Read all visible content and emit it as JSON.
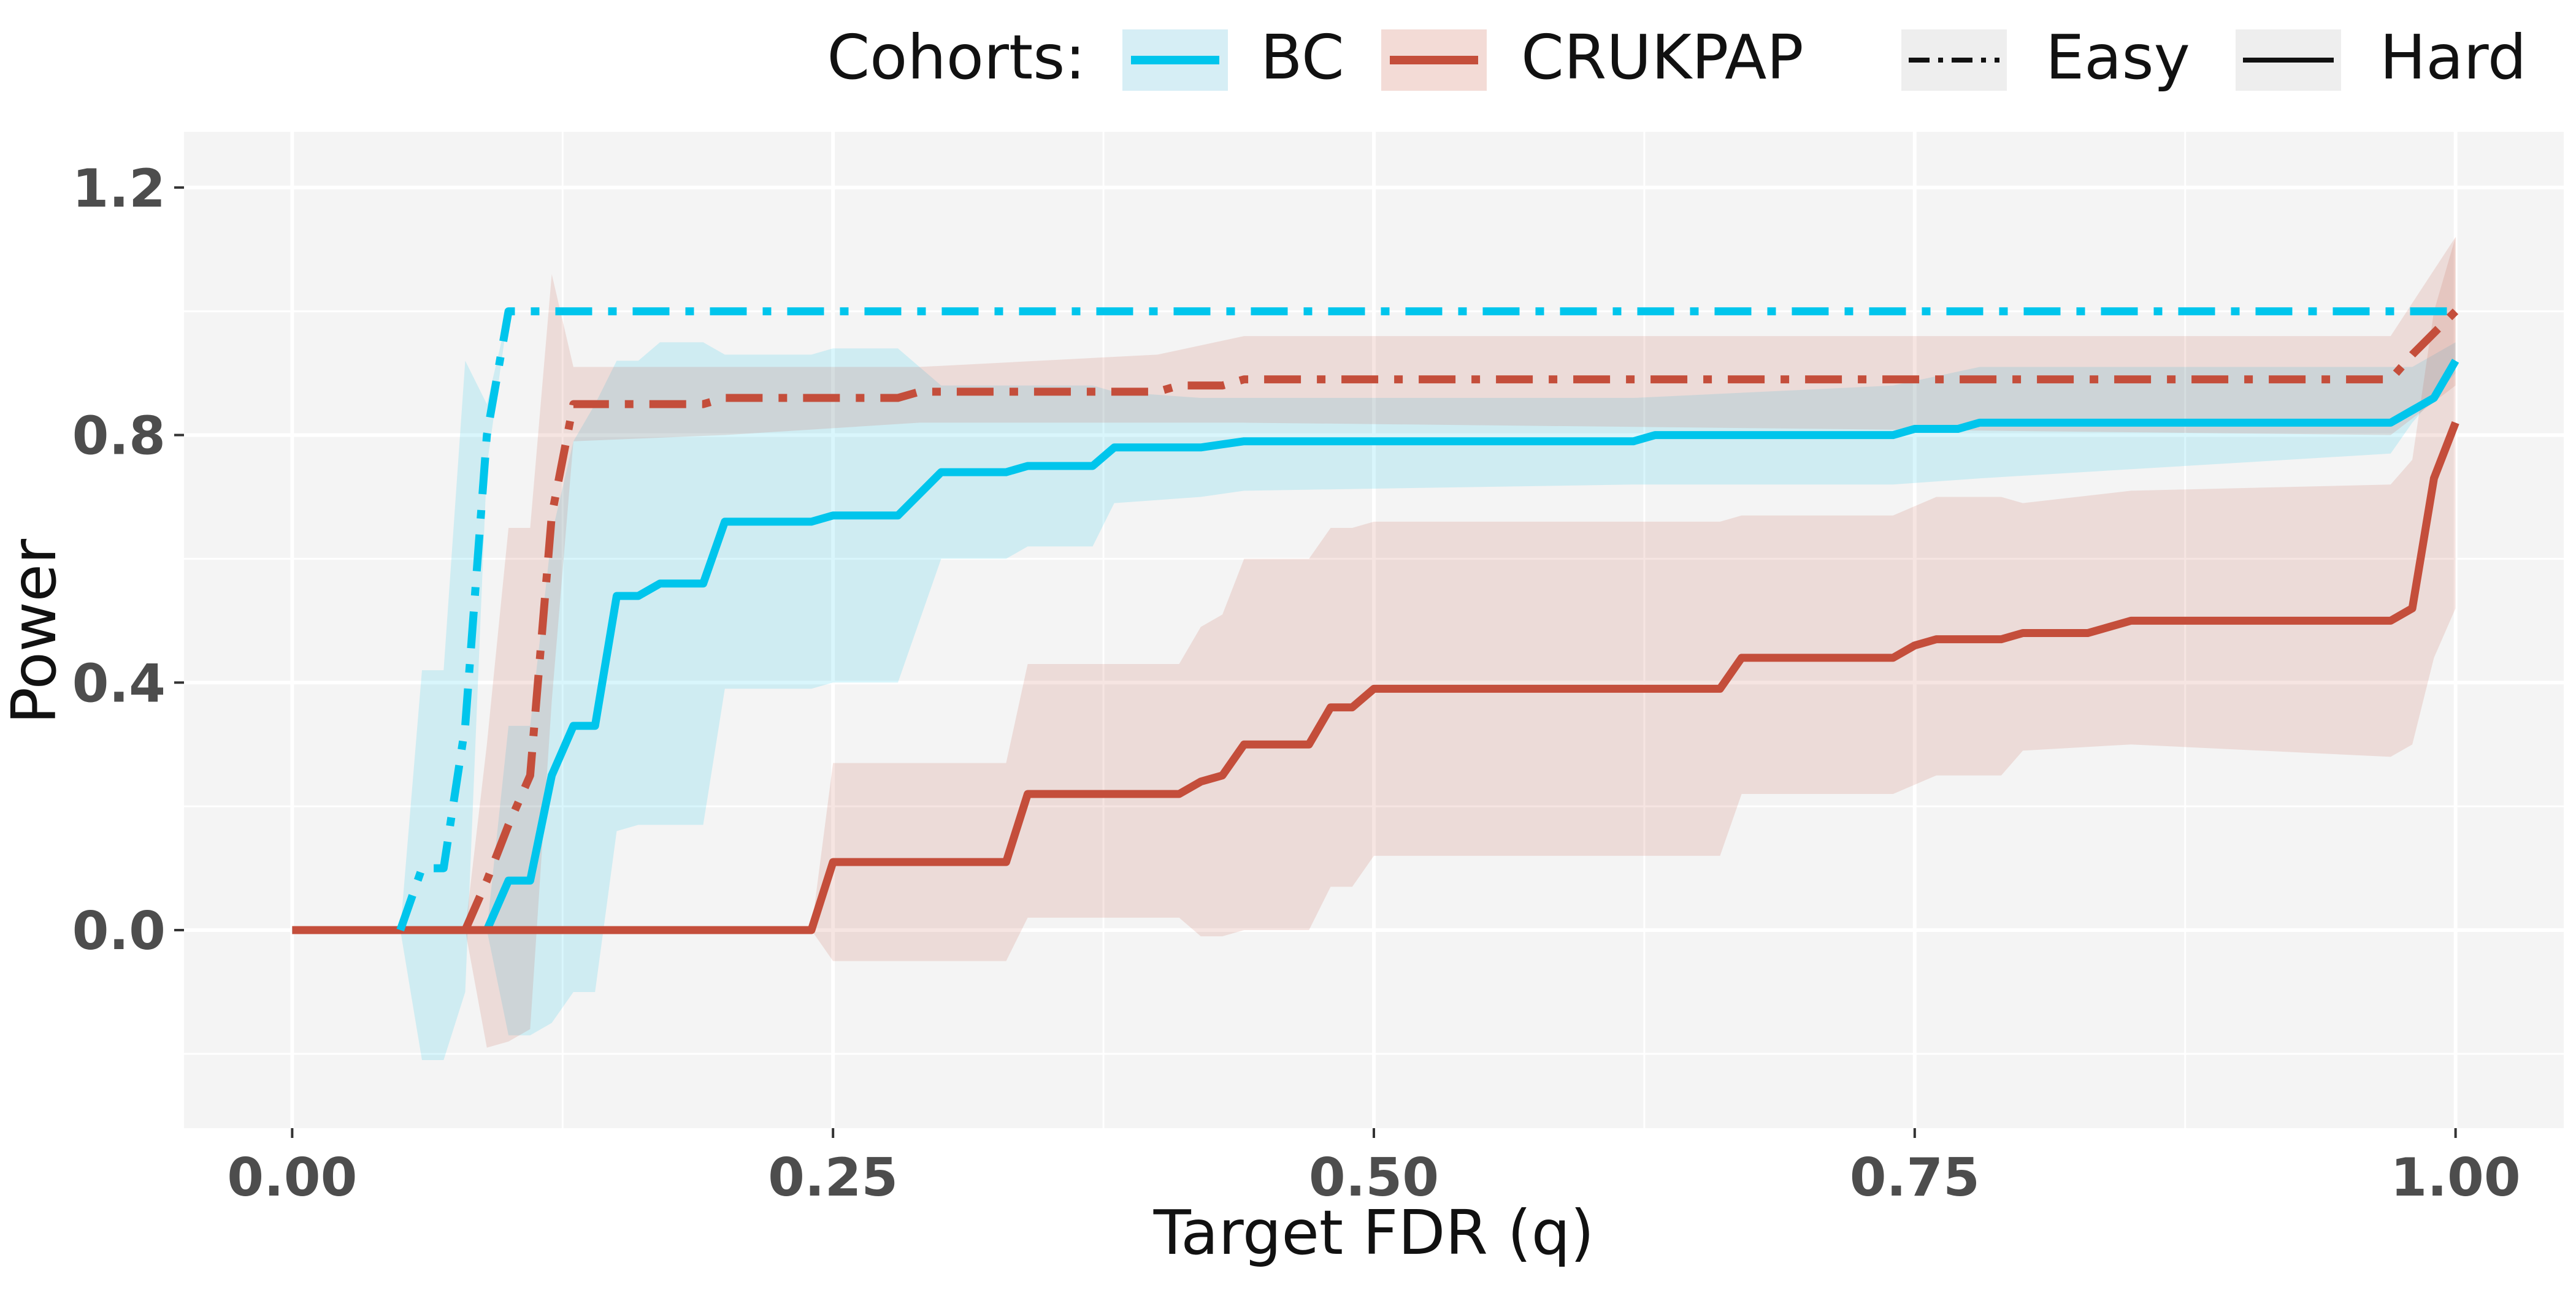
{
  "chart_data": {
    "type": "line",
    "xlabel": "Target FDR (q)",
    "ylabel": "Power",
    "xlim": [
      -0.05,
      1.05
    ],
    "ylim": [
      -0.32,
      1.29
    ],
    "x_ticks": [
      0.0,
      0.25,
      0.5,
      0.75,
      1.0
    ],
    "x_tick_labels": [
      "0.00",
      "0.25",
      "0.50",
      "0.75",
      "1.00"
    ],
    "y_ticks": [
      0.0,
      0.4,
      0.8,
      1.2
    ],
    "y_tick_labels": [
      "0.0",
      "0.4",
      "0.8",
      "1.2"
    ],
    "grid": true,
    "legend": {
      "position": "top",
      "cohorts_title": "Cohorts:",
      "cohorts": [
        {
          "label": "BC",
          "color": "#00C5EC"
        },
        {
          "label": "CRUKPAP",
          "color": "#C44E3B"
        }
      ],
      "difficulty": [
        {
          "label": "Easy",
          "linestyle": "dashdot"
        },
        {
          "label": "Hard",
          "linestyle": "solid"
        }
      ]
    },
    "series": [
      {
        "cohort": "BC",
        "difficulty": "Easy",
        "color": "#00C5EC",
        "linestyle": "dashdot",
        "x": [
          0.05,
          0.06,
          0.07,
          0.08,
          0.09,
          0.1,
          1.0
        ],
        "y": [
          0.0,
          0.1,
          0.1,
          0.33,
          0.8,
          1.0,
          1.0
        ],
        "band_x": [
          0.05,
          0.06,
          0.07,
          0.08,
          0.09,
          0.1,
          1.0
        ],
        "band_lo": [
          0.0,
          -0.21,
          -0.21,
          -0.1,
          0.75,
          1.0,
          1.0
        ],
        "band_hi": [
          0.0,
          0.42,
          0.42,
          0.92,
          0.85,
          1.0,
          1.0
        ]
      },
      {
        "cohort": "BC",
        "difficulty": "Hard",
        "color": "#00C5EC",
        "linestyle": "solid",
        "x": [
          0.0,
          0.09,
          0.1,
          0.11,
          0.12,
          0.13,
          0.14,
          0.15,
          0.16,
          0.17,
          0.19,
          0.2,
          0.24,
          0.25,
          0.28,
          0.3,
          0.33,
          0.34,
          0.37,
          0.38,
          0.42,
          0.43,
          0.44,
          0.62,
          0.63,
          0.74,
          0.75,
          0.77,
          0.78,
          0.97,
          0.98,
          0.99,
          1.0
        ],
        "y": [
          0.0,
          0.0,
          0.08,
          0.08,
          0.25,
          0.33,
          0.33,
          0.54,
          0.54,
          0.56,
          0.56,
          0.66,
          0.66,
          0.67,
          0.67,
          0.74,
          0.74,
          0.75,
          0.75,
          0.78,
          0.78,
          0.785,
          0.79,
          0.79,
          0.8,
          0.8,
          0.81,
          0.81,
          0.82,
          0.82,
          0.84,
          0.86,
          0.92
        ],
        "band_x": [
          0.09,
          0.1,
          0.11,
          0.12,
          0.13,
          0.14,
          0.15,
          0.16,
          0.17,
          0.19,
          0.2,
          0.24,
          0.25,
          0.28,
          0.3,
          0.33,
          0.34,
          0.37,
          0.38,
          0.42,
          0.44,
          0.62,
          0.74,
          0.78,
          0.97,
          0.98,
          1.0
        ],
        "band_lo": [
          0.0,
          -0.17,
          -0.17,
          -0.15,
          -0.1,
          -0.1,
          0.16,
          0.17,
          0.17,
          0.17,
          0.39,
          0.39,
          0.4,
          0.4,
          0.6,
          0.6,
          0.62,
          0.62,
          0.69,
          0.7,
          0.71,
          0.72,
          0.72,
          0.73,
          0.77,
          0.82,
          0.9
        ],
        "band_hi": [
          0.0,
          0.33,
          0.33,
          0.64,
          0.79,
          0.85,
          0.92,
          0.92,
          0.95,
          0.95,
          0.93,
          0.93,
          0.94,
          0.94,
          0.88,
          0.88,
          0.88,
          0.88,
          0.87,
          0.86,
          0.86,
          0.86,
          0.88,
          0.91,
          0.91,
          0.91,
          0.95
        ]
      },
      {
        "cohort": "CRUKPAP",
        "difficulty": "Easy",
        "color": "#C44E3B",
        "linestyle": "dashdot",
        "x": [
          0.08,
          0.09,
          0.1,
          0.11,
          0.12,
          0.13,
          0.19,
          0.2,
          0.28,
          0.29,
          0.4,
          0.41,
          0.43,
          0.44,
          0.97,
          0.98,
          1.0
        ],
        "y": [
          0.0,
          0.08,
          0.17,
          0.25,
          0.67,
          0.85,
          0.85,
          0.86,
          0.86,
          0.87,
          0.87,
          0.88,
          0.88,
          0.89,
          0.89,
          0.93,
          1.0
        ],
        "band_x": [
          0.08,
          0.09,
          0.1,
          0.11,
          0.12,
          0.13,
          0.2,
          0.29,
          0.4,
          0.44,
          0.97,
          1.0
        ],
        "band_lo": [
          0.0,
          -0.19,
          -0.18,
          -0.16,
          0.37,
          0.79,
          0.8,
          0.82,
          0.82,
          0.82,
          0.8,
          0.88
        ],
        "band_hi": [
          0.0,
          0.3,
          0.65,
          0.65,
          1.06,
          0.91,
          0.91,
          0.91,
          0.93,
          0.96,
          0.96,
          1.12
        ]
      },
      {
        "cohort": "CRUKPAP",
        "difficulty": "Hard",
        "color": "#C44E3B",
        "linestyle": "solid",
        "x": [
          0.0,
          0.24,
          0.25,
          0.33,
          0.34,
          0.41,
          0.42,
          0.43,
          0.44,
          0.47,
          0.48,
          0.49,
          0.5,
          0.66,
          0.67,
          0.74,
          0.75,
          0.76,
          0.79,
          0.8,
          0.83,
          0.85,
          0.97,
          0.98,
          0.99,
          1.0
        ],
        "y": [
          0.0,
          0.0,
          0.11,
          0.11,
          0.22,
          0.22,
          0.24,
          0.25,
          0.3,
          0.3,
          0.36,
          0.36,
          0.39,
          0.39,
          0.44,
          0.44,
          0.46,
          0.47,
          0.47,
          0.48,
          0.48,
          0.5,
          0.5,
          0.52,
          0.73,
          0.82
        ],
        "band_x": [
          0.24,
          0.25,
          0.33,
          0.34,
          0.41,
          0.42,
          0.43,
          0.44,
          0.47,
          0.48,
          0.49,
          0.5,
          0.66,
          0.67,
          0.74,
          0.76,
          0.79,
          0.8,
          0.85,
          0.97,
          0.98,
          0.99,
          1.0
        ],
        "band_lo": [
          0.0,
          -0.05,
          -0.05,
          0.02,
          0.02,
          -0.01,
          -0.01,
          0.0,
          0.0,
          0.07,
          0.07,
          0.12,
          0.12,
          0.22,
          0.22,
          0.25,
          0.25,
          0.29,
          0.3,
          0.28,
          0.3,
          0.44,
          0.52
        ],
        "band_hi": [
          0.0,
          0.27,
          0.27,
          0.43,
          0.43,
          0.49,
          0.51,
          0.6,
          0.6,
          0.65,
          0.65,
          0.66,
          0.66,
          0.67,
          0.67,
          0.7,
          0.7,
          0.69,
          0.71,
          0.72,
          0.76,
          1.0,
          1.12
        ]
      }
    ]
  }
}
